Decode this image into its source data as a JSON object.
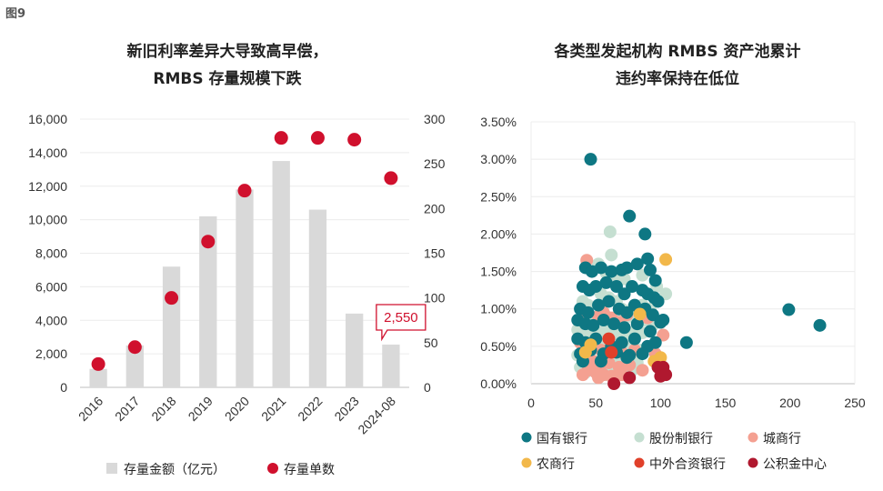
{
  "figure_label": "图9",
  "chart_data": [
    {
      "type": "bar",
      "title_lines": [
        "新旧利率差异大导致高早偿，",
        "RMBS 存量规模下跌"
      ],
      "categories": [
        "2016",
        "2017",
        "2018",
        "2019",
        "2020",
        "2021",
        "2022",
        "2023",
        "2024-08"
      ],
      "series": [
        {
          "name": "存量金额（亿元）",
          "type": "bar",
          "axis": "left",
          "color": "#d9d9d9",
          "values": [
            1100,
            2500,
            7200,
            10200,
            11800,
            13500,
            10600,
            4400,
            2550
          ]
        },
        {
          "name": "存量单数",
          "type": "scatter",
          "axis": "right",
          "color": "#d0102d",
          "values": [
            26,
            45,
            100,
            163,
            220,
            279,
            279,
            277,
            234
          ]
        }
      ],
      "ylim_left": [
        0,
        16000
      ],
      "yticks_left": [
        "0",
        "2,000",
        "4,000",
        "6,000",
        "8,000",
        "10,000",
        "12,000",
        "14,000",
        "16,000"
      ],
      "ylim_right": [
        0,
        300
      ],
      "yticks_right": [
        "0",
        "50",
        "100",
        "150",
        "200",
        "250",
        "300"
      ],
      "annotation": {
        "category": "2024-08",
        "text": "2,550"
      },
      "legend_labels": [
        "存量金额（亿元）",
        "存量单数"
      ],
      "legend_position": "bottom"
    },
    {
      "type": "scatter",
      "title_lines": [
        "各类型发起机构 RMBS 资产池累计",
        "违约率保持在低位"
      ],
      "xlim": [
        0,
        250
      ],
      "xticks": [
        "0",
        "50",
        "100",
        "150",
        "200",
        "250"
      ],
      "ylim": [
        0,
        3.5
      ],
      "yticks": [
        "0.00%",
        "0.50%",
        "1.00%",
        "1.50%",
        "2.00%",
        "2.50%",
        "3.00%",
        "3.50%"
      ],
      "legend_position": "bottom",
      "series": [
        {
          "name": "国有银行",
          "color": "#0e7783",
          "points": [
            [
              46,
              3.0
            ],
            [
              76,
              2.24
            ],
            [
              88,
              2.0
            ],
            [
              90,
              1.67
            ],
            [
              42,
              1.55
            ],
            [
              47,
              1.5
            ],
            [
              54,
              1.55
            ],
            [
              62,
              1.5
            ],
            [
              70,
              1.52
            ],
            [
              74,
              1.55
            ],
            [
              82,
              1.6
            ],
            [
              92,
              1.52
            ],
            [
              96,
              1.38
            ],
            [
              40,
              1.3
            ],
            [
              45,
              1.25
            ],
            [
              50,
              1.3
            ],
            [
              58,
              1.35
            ],
            [
              66,
              1.3
            ],
            [
              72,
              1.2
            ],
            [
              78,
              1.3
            ],
            [
              86,
              1.25
            ],
            [
              90,
              1.2
            ],
            [
              95,
              1.15
            ],
            [
              98,
              1.1
            ],
            [
              38,
              1.0
            ],
            [
              44,
              0.95
            ],
            [
              52,
              1.05
            ],
            [
              60,
              1.1
            ],
            [
              68,
              1.0
            ],
            [
              74,
              0.95
            ],
            [
              80,
              1.05
            ],
            [
              88,
              1.0
            ],
            [
              94,
              0.92
            ],
            [
              102,
              0.85
            ],
            [
              36,
              0.85
            ],
            [
              42,
              0.8
            ],
            [
              48,
              0.78
            ],
            [
              56,
              0.85
            ],
            [
              64,
              0.8
            ],
            [
              72,
              0.75
            ],
            [
              82,
              0.8
            ],
            [
              92,
              0.7
            ],
            [
              100,
              0.82
            ],
            [
              120,
              0.55
            ],
            [
              36,
              0.6
            ],
            [
              42,
              0.55
            ],
            [
              50,
              0.6
            ],
            [
              62,
              0.5
            ],
            [
              70,
              0.55
            ],
            [
              80,
              0.6
            ],
            [
              90,
              0.5
            ],
            [
              96,
              0.55
            ],
            [
              38,
              0.4
            ],
            [
              46,
              0.45
            ],
            [
              56,
              0.4
            ],
            [
              66,
              0.42
            ],
            [
              76,
              0.38
            ],
            [
              86,
              0.4
            ],
            [
              40,
              0.3
            ],
            [
              54,
              0.3
            ],
            [
              74,
              0.35
            ],
            [
              199,
              0.99
            ],
            [
              223,
              0.78
            ]
          ]
        },
        {
          "name": "股份制银行",
          "color": "#c5dfd1",
          "points": [
            [
              61,
              2.03
            ],
            [
              62,
              1.72
            ],
            [
              52,
              1.6
            ],
            [
              58,
              1.48
            ],
            [
              66,
              1.42
            ],
            [
              72,
              1.4
            ],
            [
              86,
              1.45
            ],
            [
              97,
              1.3
            ],
            [
              104,
              1.2
            ],
            [
              40,
              1.1
            ],
            [
              44,
              1.05
            ],
            [
              54,
              1.2
            ],
            [
              60,
              1.15
            ],
            [
              66,
              1.1
            ],
            [
              70,
              1.0
            ],
            [
              78,
              1.0
            ],
            [
              86,
              1.05
            ],
            [
              92,
              1.0
            ],
            [
              42,
              0.9
            ],
            [
              48,
              0.85
            ],
            [
              54,
              0.95
            ],
            [
              58,
              0.9
            ],
            [
              64,
              0.85
            ],
            [
              70,
              0.88
            ],
            [
              76,
              0.9
            ],
            [
              82,
              0.8
            ],
            [
              88,
              0.85
            ],
            [
              94,
              0.78
            ],
            [
              36,
              0.72
            ],
            [
              44,
              0.7
            ],
            [
              50,
              0.65
            ],
            [
              56,
              0.7
            ],
            [
              62,
              0.75
            ],
            [
              68,
              0.72
            ],
            [
              74,
              0.65
            ],
            [
              80,
              0.7
            ],
            [
              86,
              0.68
            ],
            [
              38,
              0.55
            ],
            [
              44,
              0.5
            ],
            [
              52,
              0.48
            ],
            [
              58,
              0.55
            ],
            [
              66,
              0.6
            ],
            [
              72,
              0.5
            ],
            [
              78,
              0.55
            ],
            [
              84,
              0.45
            ],
            [
              36,
              0.38
            ],
            [
              42,
              0.35
            ],
            [
              50,
              0.3
            ],
            [
              58,
              0.32
            ],
            [
              66,
              0.35
            ],
            [
              74,
              0.3
            ],
            [
              82,
              0.28
            ],
            [
              38,
              0.22
            ],
            [
              46,
              0.2
            ],
            [
              54,
              0.18
            ],
            [
              62,
              0.22
            ],
            [
              70,
              0.2
            ],
            [
              78,
              0.18
            ],
            [
              42,
              0.15
            ],
            [
              58,
              0.12
            ]
          ]
        },
        {
          "name": "城商行",
          "color": "#f4a091",
          "points": [
            [
              43,
              1.65
            ],
            [
              40,
              0.85
            ],
            [
              52,
              0.9
            ],
            [
              56,
              0.95
            ],
            [
              62,
              0.88
            ],
            [
              68,
              0.82
            ],
            [
              74,
              0.92
            ],
            [
              90,
              0.88
            ],
            [
              102,
              0.65
            ],
            [
              38,
              0.55
            ],
            [
              46,
              0.5
            ],
            [
              54,
              0.45
            ],
            [
              62,
              0.48
            ],
            [
              70,
              0.42
            ],
            [
              80,
              0.45
            ],
            [
              96,
              0.4
            ],
            [
              40,
              0.32
            ],
            [
              48,
              0.3
            ],
            [
              54,
              0.25
            ],
            [
              60,
              0.28
            ],
            [
              68,
              0.22
            ],
            [
              76,
              0.25
            ],
            [
              86,
              0.18
            ],
            [
              44,
              0.18
            ],
            [
              50,
              0.15
            ],
            [
              56,
              0.12
            ],
            [
              62,
              0.1
            ],
            [
              70,
              0.12
            ],
            [
              40,
              0.12
            ],
            [
              52,
              0.08
            ]
          ]
        },
        {
          "name": "农商行",
          "color": "#f2b84a",
          "points": [
            [
              104,
              1.66
            ],
            [
              84,
              0.93
            ],
            [
              95,
              0.3
            ],
            [
              100,
              0.35
            ],
            [
              46,
              0.52
            ],
            [
              42,
              0.42
            ]
          ]
        },
        {
          "name": "中外合资银行",
          "color": "#e0402a",
          "points": [
            [
              60,
              0.6
            ],
            [
              62,
              0.42
            ]
          ]
        },
        {
          "name": "公积金中心",
          "color": "#b0182f",
          "points": [
            [
              64,
              0.0
            ],
            [
              76,
              0.08
            ],
            [
              98,
              0.22
            ],
            [
              102,
              0.22
            ],
            [
              100,
              0.1
            ],
            [
              104,
              0.12
            ]
          ]
        }
      ]
    }
  ]
}
